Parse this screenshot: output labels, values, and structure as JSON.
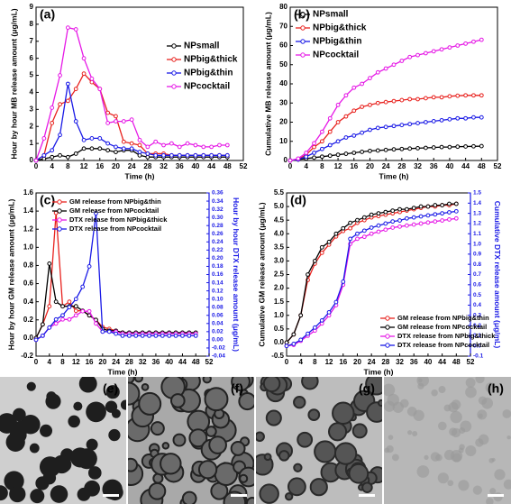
{
  "chart_data": [
    {
      "type": "line",
      "panel_label": "(a)",
      "xlabel": "Time (h)",
      "ylabel": "Hour by hour MB release amount (μg/mL)",
      "legend": "center right",
      "x": [
        0,
        2,
        4,
        6,
        8,
        10,
        12,
        14,
        16,
        18,
        20,
        22,
        24,
        26,
        28,
        30,
        32,
        34,
        36,
        38,
        40,
        42,
        44,
        46,
        48
      ],
      "xlim": [
        0,
        52
      ],
      "xticks": [
        0,
        4,
        8,
        12,
        16,
        20,
        24,
        28,
        32,
        36,
        40,
        44,
        48,
        52
      ],
      "ylim": [
        0,
        9
      ],
      "yticks": [
        0,
        1,
        2,
        3,
        4,
        5,
        6,
        7,
        8,
        9
      ],
      "series": [
        {
          "name": "NPsmall",
          "color": "#000000",
          "values": [
            0,
            0.1,
            0.2,
            0.3,
            0.2,
            0.4,
            0.7,
            0.7,
            0.7,
            0.6,
            0.5,
            0.6,
            0.6,
            0.3,
            0.2,
            0.2,
            0.2,
            0.2,
            0.2,
            0.2,
            0.2,
            0.2,
            0.2,
            0.2,
            0.2
          ]
        },
        {
          "name": "NPbig&thick",
          "color": "#e8221e",
          "values": [
            0,
            0.3,
            2.2,
            3.3,
            3.5,
            4.2,
            5.1,
            4.6,
            4.2,
            2.8,
            2.6,
            1.1,
            1.0,
            0.9,
            0.4,
            0.4,
            0.4,
            0.3,
            0.3,
            0.3,
            0.3,
            0.3,
            0.3,
            0.3,
            0.3
          ]
        },
        {
          "name": "NPbig&thin",
          "color": "#1a1ae6",
          "values": [
            0,
            0.3,
            0.6,
            1.5,
            4.5,
            2.3,
            1.2,
            1.3,
            1.3,
            1.0,
            0.8,
            0.7,
            0.7,
            0.5,
            0.4,
            0.3,
            0.3,
            0.3,
            0.3,
            0.3,
            0.3,
            0.3,
            0.3,
            0.3,
            0.3
          ]
        },
        {
          "name": "NPcocktail",
          "color": "#e619e6",
          "values": [
            0,
            1.3,
            3.1,
            5.0,
            7.8,
            7.7,
            6.0,
            4.8,
            4.2,
            2.2,
            2.3,
            2.3,
            2.4,
            1.2,
            0.8,
            1.1,
            0.9,
            1.0,
            0.8,
            1.0,
            0.9,
            0.8,
            0.8,
            0.9,
            0.9
          ]
        }
      ]
    },
    {
      "type": "line",
      "panel_label": "(b)",
      "xlabel": "Time (h)",
      "ylabel": "Cumulative MB release amount (μg/mL)",
      "legend": "upper left",
      "x": [
        0,
        2,
        4,
        6,
        8,
        10,
        12,
        14,
        16,
        18,
        20,
        22,
        24,
        26,
        28,
        30,
        32,
        34,
        36,
        38,
        40,
        42,
        44,
        46,
        48
      ],
      "xlim": [
        0,
        52
      ],
      "xticks": [
        0,
        4,
        8,
        12,
        16,
        20,
        24,
        28,
        32,
        36,
        40,
        44,
        48,
        52
      ],
      "ylim": [
        0,
        80
      ],
      "yticks": [
        0,
        10,
        20,
        30,
        40,
        50,
        60,
        70,
        80
      ],
      "series": [
        {
          "name": "NPsmall",
          "color": "#000000",
          "values": [
            0,
            0.5,
            1,
            1.5,
            2,
            2.5,
            3,
            3.5,
            4,
            4.5,
            5,
            5.2,
            5.5,
            5.8,
            6,
            6.2,
            6.4,
            6.6,
            6.8,
            7,
            7,
            7.2,
            7.3,
            7.4,
            7.5
          ]
        },
        {
          "name": "NPbig&thick",
          "color": "#e8221e",
          "values": [
            0,
            0.5,
            3,
            7,
            10,
            15,
            20,
            23,
            26,
            28,
            29,
            30,
            30.5,
            31,
            31.5,
            32,
            32,
            32.5,
            33,
            33,
            33.5,
            33.8,
            34,
            34,
            34
          ]
        },
        {
          "name": "NPbig&thin",
          "color": "#1a1ae6",
          "values": [
            0,
            0.5,
            2,
            4,
            6,
            8,
            10,
            12,
            13,
            14.5,
            16,
            17,
            17.5,
            18,
            18.5,
            19,
            19.5,
            20,
            20.5,
            21,
            21.5,
            22,
            22,
            22.5,
            22.5
          ]
        },
        {
          "name": "NPcocktail",
          "color": "#e619e6",
          "values": [
            0,
            1,
            4,
            9,
            15,
            22,
            29,
            34,
            38,
            40,
            43,
            46,
            48,
            50,
            52,
            54,
            55,
            56,
            57,
            58,
            59,
            60,
            61,
            62,
            63
          ]
        }
      ]
    },
    {
      "type": "line",
      "panel_label": "(c)",
      "xlabel": "Time (h)",
      "ylabel": "Hour by hour GM release amount (μg/mL)",
      "y2label": "Hour by hour DTX release amount (μg/mL)",
      "legend": "upper left",
      "x": [
        0,
        2,
        4,
        6,
        8,
        10,
        12,
        14,
        16,
        18,
        20,
        22,
        24,
        26,
        28,
        30,
        32,
        34,
        36,
        38,
        40,
        42,
        44,
        46,
        48
      ],
      "xlim": [
        0,
        52
      ],
      "xticks": [
        0,
        4,
        8,
        12,
        16,
        20,
        24,
        28,
        32,
        36,
        40,
        44,
        48,
        52
      ],
      "ylim": [
        -0.2,
        1.6
      ],
      "yticks": [
        -0.2,
        {
          "value": 0,
          "label": "0.0"
        },
        0.2,
        0.4,
        0.6,
        0.8,
        {
          "value": 1,
          "label": "1.0"
        },
        1.2,
        1.4,
        1.6
      ],
      "y2lim": [
        -0.04,
        0.36
      ],
      "y2ticks": [
        -0.04,
        -0.02,
        {
          "value": 0,
          "label": "0.00"
        },
        0.02,
        0.04,
        0.06,
        0.08,
        {
          "value": 0.1,
          "label": "0.10"
        },
        0.12,
        0.14,
        0.16,
        0.18,
        {
          "value": 0.2,
          "label": "0.20"
        },
        0.22,
        0.24,
        0.26,
        0.28,
        {
          "value": 0.3,
          "label": "0.30"
        },
        0.32,
        0.34,
        0.36
      ],
      "series": [
        {
          "name": "GM release from NPbig&thin",
          "color": "#e8221e",
          "values": [
            0,
            0.15,
            0.35,
            1.38,
            0.35,
            0.4,
            0.3,
            0.3,
            0.25,
            0.2,
            0.12,
            0.1,
            0.08,
            0.06,
            0.05,
            0.05,
            0.05,
            0.05,
            0.05,
            0.05,
            0.05,
            0.05,
            0.05,
            0.05,
            0.05
          ]
        },
        {
          "name": "GM release from NPcocktail",
          "color": "#000000",
          "values": [
            0,
            0.15,
            0.82,
            0.4,
            0.35,
            0.35,
            0.35,
            0.3,
            0.25,
            0.2,
            0.1,
            0.08,
            0.08,
            0.06,
            0.06,
            0.06,
            0.06,
            0.06,
            0.06,
            0.06,
            0.06,
            0.06,
            0.06,
            0.06,
            0.06
          ]
        },
        {
          "name": "DTX release from NPbig&thick",
          "color": "#e619e6",
          "axis": "y2",
          "values": [
            0,
            0.01,
            0.03,
            0.04,
            0.05,
            0.05,
            0.06,
            0.07,
            0.07,
            0.04,
            0.02,
            0.02,
            0.02,
            0.015,
            0.015,
            0.015,
            0.015,
            0.015,
            0.015,
            0.015,
            0.015,
            0.015,
            0.015,
            0.015,
            0.015
          ]
        },
        {
          "name": "DTX release from NPcocktail",
          "color": "#1a1ae6",
          "axis": "y2",
          "values": [
            0,
            0.01,
            0.03,
            0.05,
            0.06,
            0.08,
            0.1,
            0.13,
            0.18,
            0.31,
            0.02,
            0.02,
            0.015,
            0.01,
            0.01,
            0.01,
            0.01,
            0.01,
            0.01,
            0.01,
            0.01,
            0.01,
            0.01,
            0.01,
            0.01
          ]
        }
      ]
    },
    {
      "type": "line",
      "panel_label": "(d)",
      "xlabel": "Time (h)",
      "ylabel": "Cumulative GM release amount (μg/mL)",
      "y2label": "Cumulative DTX release amount (μg/mL)",
      "legend": "lower right",
      "x": [
        0,
        2,
        4,
        6,
        8,
        10,
        12,
        14,
        16,
        18,
        20,
        22,
        24,
        26,
        28,
        30,
        32,
        34,
        36,
        38,
        40,
        42,
        44,
        46,
        48
      ],
      "xlim": [
        0,
        52
      ],
      "xticks": [
        0,
        4,
        8,
        12,
        16,
        20,
        24,
        28,
        32,
        36,
        40,
        44,
        48,
        52
      ],
      "ylim": [
        -0.5,
        5.5
      ],
      "yticks": [
        -0.5,
        {
          "value": 0,
          "label": "0.0"
        },
        0.5,
        {
          "value": 1,
          "label": "1.0"
        },
        1.5,
        {
          "value": 2,
          "label": "2.0"
        },
        2.5,
        {
          "value": 3,
          "label": "3.0"
        },
        3.5,
        {
          "value": 4,
          "label": "4.0"
        },
        4.5,
        {
          "value": 5,
          "label": "5.0"
        },
        5.5
      ],
      "y2lim": [
        -0.1,
        1.5
      ],
      "y2ticks": [
        -0.1,
        {
          "value": 0,
          "label": "0.0"
        },
        0.1,
        0.2,
        0.3,
        0.4,
        0.5,
        0.6,
        0.7,
        0.8,
        0.9,
        {
          "value": 1,
          "label": "1.0"
        },
        1.1,
        1.2,
        1.3,
        1.4,
        1.5
      ],
      "series": [
        {
          "name": "GM release from NPbig&thin",
          "color": "#e8221e",
          "values": [
            0,
            0.3,
            1.0,
            2.3,
            2.9,
            3.3,
            3.6,
            3.9,
            4.1,
            4.2,
            4.4,
            4.5,
            4.6,
            4.65,
            4.7,
            4.75,
            4.8,
            4.85,
            4.9,
            4.95,
            5.0,
            5.0,
            5.05,
            5.05,
            5.1
          ]
        },
        {
          "name": "GM release from NPcocktail",
          "color": "#000000",
          "values": [
            0,
            0.3,
            1.0,
            2.5,
            3.0,
            3.5,
            3.7,
            4.0,
            4.2,
            4.4,
            4.5,
            4.6,
            4.7,
            4.75,
            4.8,
            4.85,
            4.9,
            4.9,
            4.95,
            5.0,
            5.0,
            5.05,
            5.05,
            5.1,
            5.1
          ]
        },
        {
          "name": "DTX release from NPbig&thick",
          "color": "#e619e6",
          "axis": "y2",
          "values": [
            0,
            0.01,
            0.05,
            0.1,
            0.15,
            0.22,
            0.3,
            0.4,
            0.6,
            1.0,
            1.05,
            1.07,
            1.1,
            1.12,
            1.14,
            1.16,
            1.17,
            1.18,
            1.19,
            1.2,
            1.21,
            1.22,
            1.23,
            1.24,
            1.25
          ]
        },
        {
          "name": "DTX release from NPcocktail",
          "color": "#1a1ae6",
          "axis": "y2",
          "values": [
            0,
            0.02,
            0.06,
            0.12,
            0.18,
            0.25,
            0.33,
            0.43,
            0.63,
            1.05,
            1.1,
            1.13,
            1.16,
            1.18,
            1.2,
            1.22,
            1.23,
            1.25,
            1.26,
            1.27,
            1.28,
            1.29,
            1.3,
            1.31,
            1.32
          ]
        }
      ]
    }
  ],
  "images": [
    {
      "label": "(e)"
    },
    {
      "label": "(f)"
    },
    {
      "label": "(g)"
    },
    {
      "label": "(h)"
    }
  ]
}
